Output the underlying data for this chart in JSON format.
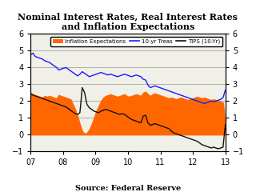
{
  "title": "Nominal Interest Rates, Real Interest Rates\nand Inflation Expectations",
  "source": "Source: Federal Reserve",
  "ylim": [
    -1,
    6
  ],
  "yticks": [
    -1,
    0,
    1,
    2,
    3,
    4,
    5,
    6
  ],
  "x_labels": [
    "07",
    "08",
    "09",
    "10",
    "11",
    "12",
    "13"
  ],
  "background_color": "#f0f0e8",
  "inflation_color": "#FF6600",
  "treas_color": "#1a1aff",
  "tips_color": "#111111",
  "n_points": 84,
  "inflation_expectations": [
    2.5,
    2.4,
    2.35,
    2.3,
    2.25,
    2.2,
    2.3,
    2.25,
    2.3,
    2.25,
    2.2,
    2.15,
    2.35,
    2.3,
    2.25,
    2.2,
    2.15,
    2.1,
    1.8,
    1.5,
    1.1,
    0.6,
    0.2,
    0.05,
    0.1,
    0.3,
    0.6,
    1.0,
    1.4,
    1.7,
    2.0,
    2.2,
    2.3,
    2.35,
    2.4,
    2.35,
    2.3,
    2.25,
    2.3,
    2.35,
    2.4,
    2.3,
    2.25,
    2.3,
    2.35,
    2.4,
    2.35,
    2.3,
    2.5,
    2.55,
    2.4,
    2.3,
    2.4,
    2.45,
    2.4,
    2.35,
    2.3,
    2.25,
    2.2,
    2.15,
    2.2,
    2.15,
    2.1,
    2.15,
    2.2,
    2.15,
    2.1,
    2.05,
    2.1,
    2.15,
    2.2,
    2.25,
    2.2,
    2.15,
    2.2,
    2.15,
    2.1,
    2.05,
    2.1,
    2.05,
    2.0,
    1.95,
    1.9,
    0.6
  ],
  "treas_10yr": [
    4.75,
    4.85,
    4.65,
    4.6,
    4.55,
    4.5,
    4.4,
    4.35,
    4.3,
    4.2,
    4.1,
    4.0,
    3.85,
    3.9,
    3.95,
    4.0,
    3.9,
    3.8,
    3.7,
    3.6,
    3.5,
    3.6,
    3.75,
    3.65,
    3.55,
    3.45,
    3.5,
    3.55,
    3.6,
    3.65,
    3.7,
    3.65,
    3.6,
    3.55,
    3.6,
    3.55,
    3.5,
    3.45,
    3.5,
    3.55,
    3.6,
    3.55,
    3.5,
    3.45,
    3.5,
    3.55,
    3.5,
    3.45,
    3.3,
    3.25,
    2.95,
    2.8,
    2.85,
    2.9,
    2.85,
    2.8,
    2.75,
    2.7,
    2.65,
    2.6,
    2.55,
    2.5,
    2.45,
    2.4,
    2.35,
    2.3,
    2.25,
    2.2,
    2.15,
    2.1,
    2.05,
    2.0,
    1.95,
    1.9,
    1.85,
    1.9,
    1.95,
    2.0,
    1.95,
    2.0,
    2.05,
    2.1,
    2.2,
    2.65
  ],
  "tips_10yr": [
    2.4,
    2.35,
    2.3,
    2.25,
    2.2,
    2.15,
    2.1,
    2.05,
    2.0,
    1.95,
    1.9,
    1.85,
    1.8,
    1.75,
    1.7,
    1.65,
    1.55,
    1.45,
    1.35,
    1.25,
    1.2,
    1.3,
    2.8,
    2.5,
    1.8,
    1.6,
    1.5,
    1.4,
    1.35,
    1.3,
    1.4,
    1.45,
    1.5,
    1.45,
    1.4,
    1.35,
    1.3,
    1.25,
    1.2,
    1.25,
    1.2,
    1.1,
    1.0,
    0.9,
    0.85,
    0.8,
    0.75,
    0.7,
    1.1,
    1.15,
    0.7,
    0.55,
    0.6,
    0.65,
    0.6,
    0.55,
    0.5,
    0.45,
    0.4,
    0.35,
    0.2,
    0.1,
    0.05,
    0.0,
    -0.05,
    -0.1,
    -0.15,
    -0.2,
    -0.25,
    -0.3,
    -0.35,
    -0.4,
    -0.5,
    -0.6,
    -0.65,
    -0.7,
    -0.75,
    -0.8,
    -0.75,
    -0.8,
    -0.85,
    -0.8,
    -0.75,
    0.6
  ]
}
